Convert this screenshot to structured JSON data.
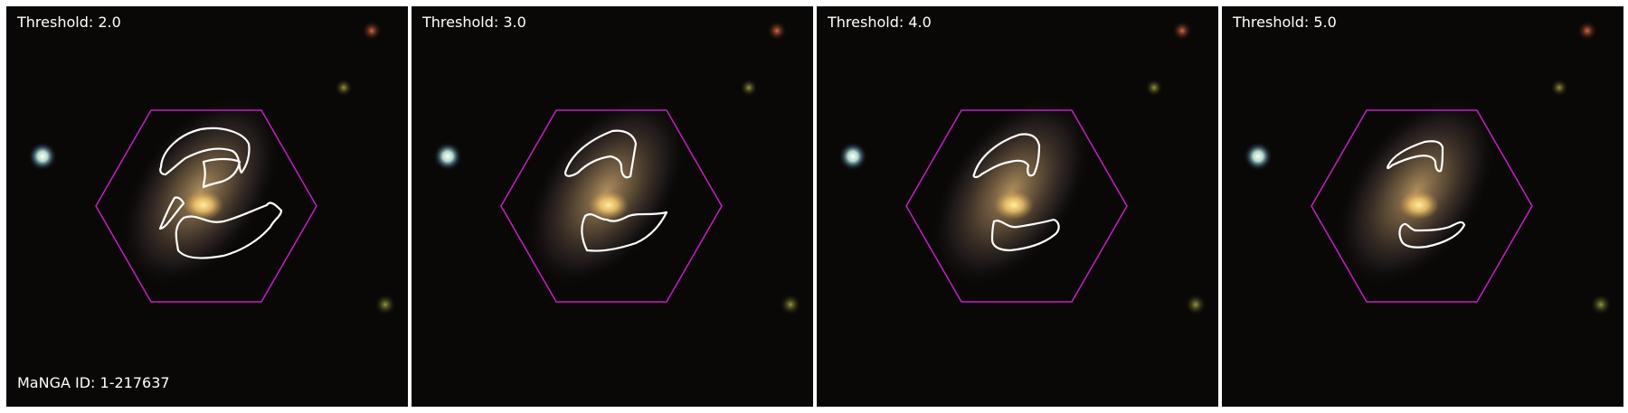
{
  "figure": {
    "galaxy_id_label": "MaNGA ID: 1-217637",
    "panels": [
      {
        "threshold_label": "Threshold: 2.0"
      },
      {
        "threshold_label": "Threshold: 3.0"
      },
      {
        "threshold_label": "Threshold: 4.0"
      },
      {
        "threshold_label": "Threshold: 5.0"
      }
    ]
  },
  "colors": {
    "sky_background": "#0a0807",
    "galaxy_core": "#ffdc78",
    "galaxy_disk": "#b99662",
    "ifu_hexagon": "#c41fc4",
    "contour": "#ffffff",
    "star_white": "#e8fff4",
    "star_red": "#d05030",
    "star_olive": "#8a8a3a",
    "label_text": "#ffffff"
  }
}
